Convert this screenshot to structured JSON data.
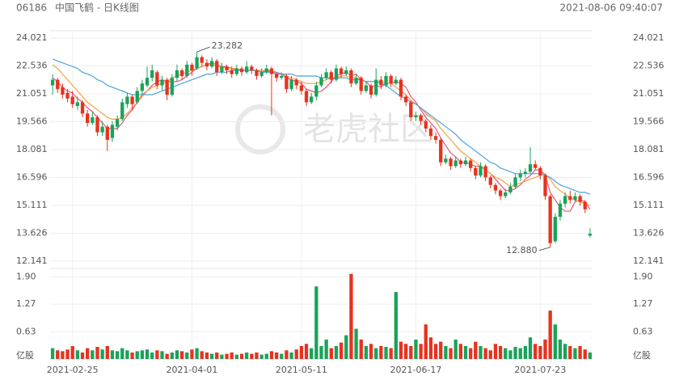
{
  "header": {
    "code": "06186",
    "title": "中国飞鹤 - 日K线图",
    "time": "2021-08-06 09:40:07"
  },
  "watermark": "老虎社区",
  "chart_data": {
    "type": "candlestick",
    "categories": [
      null,
      null,
      null,
      null,
      "2021-02-25",
      null,
      null,
      null,
      null,
      null,
      null,
      null,
      null,
      null,
      null,
      null,
      null,
      null,
      null,
      null,
      null,
      null,
      null,
      null,
      null,
      null,
      null,
      null,
      "2021-04-01",
      null,
      null,
      null,
      null,
      null,
      null,
      null,
      null,
      null,
      null,
      null,
      null,
      null,
      null,
      null,
      null,
      null,
      null,
      null,
      null,
      null,
      "2021-05-11",
      null,
      null,
      null,
      null,
      null,
      null,
      null,
      null,
      null,
      null,
      null,
      null,
      null,
      null,
      null,
      null,
      null,
      null,
      null,
      null,
      null,
      null,
      "2021-06-17",
      null,
      null,
      null,
      null,
      null,
      null,
      null,
      null,
      null,
      null,
      null,
      null,
      null,
      null,
      null,
      null,
      null,
      null,
      null,
      null,
      null,
      null,
      null,
      null,
      "2021-07-23",
      null,
      null,
      null,
      null,
      null,
      null,
      null,
      null,
      null,
      null
    ],
    "candles": [
      [
        21.5,
        22.1,
        21.0,
        21.8
      ],
      [
        21.8,
        21.9,
        21.1,
        21.3
      ],
      [
        21.4,
        21.6,
        20.8,
        21.0
      ],
      [
        21.1,
        21.3,
        20.6,
        20.8
      ],
      [
        20.9,
        21.2,
        20.3,
        20.5
      ],
      [
        20.4,
        20.9,
        20.2,
        20.6
      ],
      [
        20.6,
        20.7,
        19.8,
        20.0
      ],
      [
        20.0,
        20.2,
        19.3,
        19.5
      ],
      [
        19.5,
        20.1,
        19.4,
        19.8
      ],
      [
        19.8,
        19.9,
        18.8,
        19.0
      ],
      [
        19.0,
        19.6,
        18.8,
        19.3
      ],
      [
        19.3,
        19.4,
        18.0,
        18.6
      ],
      [
        18.7,
        19.6,
        18.5,
        19.4
      ],
      [
        19.3,
        19.9,
        19.1,
        19.7
      ],
      [
        19.7,
        20.8,
        19.6,
        20.6
      ],
      [
        20.5,
        21.1,
        20.3,
        20.9
      ],
      [
        20.9,
        21.0,
        20.2,
        20.5
      ],
      [
        20.6,
        21.4,
        20.5,
        21.2
      ],
      [
        21.2,
        21.8,
        21.0,
        21.6
      ],
      [
        21.5,
        22.5,
        21.4,
        21.9
      ],
      [
        21.9,
        22.6,
        21.7,
        22.3
      ],
      [
        22.2,
        22.3,
        21.3,
        21.5
      ],
      [
        21.5,
        22.0,
        21.2,
        21.8
      ],
      [
        21.8,
        21.9,
        20.7,
        21.0
      ],
      [
        21.0,
        22.1,
        20.9,
        21.9
      ],
      [
        21.9,
        22.6,
        21.7,
        22.3
      ],
      [
        22.3,
        22.4,
        21.8,
        22.0
      ],
      [
        22.0,
        22.8,
        21.9,
        22.6
      ],
      [
        22.6,
        22.7,
        22.0,
        22.3
      ],
      [
        22.4,
        23.282,
        22.3,
        23.0
      ],
      [
        23.0,
        23.1,
        22.5,
        22.7
      ],
      [
        22.7,
        22.9,
        22.3,
        22.5
      ],
      [
        22.5,
        23.0,
        22.4,
        22.8
      ],
      [
        22.8,
        22.9,
        22.0,
        22.2
      ],
      [
        22.2,
        22.7,
        22.1,
        22.5
      ],
      [
        22.5,
        22.6,
        22.1,
        22.3
      ],
      [
        22.3,
        22.5,
        21.9,
        22.1
      ],
      [
        22.1,
        22.6,
        22.0,
        22.4
      ],
      [
        22.4,
        22.5,
        22.0,
        22.2
      ],
      [
        22.2,
        22.8,
        22.1,
        22.5
      ],
      [
        22.5,
        22.6,
        22.1,
        22.3
      ],
      [
        22.3,
        22.4,
        21.8,
        22.0
      ],
      [
        22.0,
        22.4,
        21.9,
        22.2
      ],
      [
        22.2,
        22.6,
        22.1,
        22.4
      ],
      [
        22.4,
        22.5,
        19.9,
        22.1
      ],
      [
        22.1,
        22.2,
        21.7,
        21.9
      ],
      [
        21.9,
        22.2,
        21.8,
        22.0
      ],
      [
        22.0,
        22.1,
        21.1,
        21.3
      ],
      [
        21.3,
        22.0,
        21.2,
        21.8
      ],
      [
        21.8,
        21.9,
        21.3,
        21.5
      ],
      [
        21.5,
        21.7,
        21.0,
        21.2
      ],
      [
        21.2,
        21.3,
        20.4,
        20.6
      ],
      [
        20.6,
        21.1,
        20.5,
        20.9
      ],
      [
        20.9,
        21.7,
        20.7,
        21.5
      ],
      [
        21.5,
        22.1,
        21.4,
        21.9
      ],
      [
        21.9,
        22.4,
        21.8,
        22.2
      ],
      [
        22.2,
        22.3,
        21.6,
        21.8
      ],
      [
        21.8,
        22.6,
        21.7,
        22.4
      ],
      [
        22.4,
        22.5,
        21.9,
        22.1
      ],
      [
        22.1,
        22.5,
        22.0,
        22.3
      ],
      [
        22.3,
        22.4,
        21.4,
        21.6
      ],
      [
        21.6,
        22.1,
        21.5,
        21.9
      ],
      [
        21.9,
        22.0,
        21.0,
        21.2
      ],
      [
        21.2,
        21.7,
        21.1,
        21.5
      ],
      [
        21.5,
        21.6,
        20.8,
        21.0
      ],
      [
        21.0,
        22.4,
        20.9,
        21.8
      ],
      [
        21.8,
        22.0,
        21.3,
        21.5
      ],
      [
        21.5,
        22.2,
        21.4,
        22.0
      ],
      [
        22.0,
        22.1,
        21.4,
        21.6
      ],
      [
        21.6,
        22.0,
        21.5,
        21.8
      ],
      [
        21.8,
        21.9,
        20.7,
        20.9
      ],
      [
        20.9,
        21.0,
        20.4,
        20.6
      ],
      [
        20.6,
        20.7,
        19.6,
        19.8
      ],
      [
        19.8,
        20.1,
        19.6,
        19.9
      ],
      [
        19.9,
        20.0,
        19.4,
        19.6
      ],
      [
        19.6,
        19.7,
        19.0,
        19.2
      ],
      [
        19.2,
        19.4,
        18.6,
        18.8
      ],
      [
        18.8,
        19.0,
        18.4,
        18.6
      ],
      [
        18.6,
        18.7,
        17.2,
        17.4
      ],
      [
        17.4,
        17.8,
        17.3,
        17.6
      ],
      [
        17.6,
        17.7,
        17.0,
        17.2
      ],
      [
        17.2,
        17.7,
        17.1,
        17.5
      ],
      [
        17.5,
        17.6,
        17.1,
        17.3
      ],
      [
        17.3,
        17.7,
        17.2,
        17.5
      ],
      [
        17.5,
        17.6,
        16.9,
        17.1
      ],
      [
        17.1,
        17.2,
        16.5,
        16.7
      ],
      [
        16.7,
        17.4,
        16.6,
        17.2
      ],
      [
        17.2,
        17.3,
        16.4,
        16.6
      ],
      [
        16.6,
        16.7,
        16.0,
        16.2
      ],
      [
        16.2,
        16.3,
        15.7,
        15.9
      ],
      [
        15.9,
        16.0,
        15.4,
        15.6
      ],
      [
        15.6,
        16.0,
        15.5,
        15.8
      ],
      [
        15.8,
        16.3,
        15.7,
        16.1
      ],
      [
        16.1,
        16.8,
        16.0,
        16.6
      ],
      [
        16.6,
        17.0,
        16.4,
        16.8
      ],
      [
        16.8,
        17.1,
        16.6,
        16.9
      ],
      [
        16.9,
        18.2,
        16.8,
        17.3
      ],
      [
        17.3,
        17.5,
        17.0,
        17.1
      ],
      [
        17.1,
        17.2,
        16.5,
        16.7
      ],
      [
        16.7,
        16.8,
        15.4,
        15.6
      ],
      [
        15.6,
        15.7,
        12.88,
        13.1
      ],
      [
        13.2,
        14.7,
        13.1,
        14.5
      ],
      [
        14.5,
        15.4,
        14.3,
        15.2
      ],
      [
        15.2,
        15.8,
        15.0,
        15.6
      ],
      [
        15.6,
        15.9,
        15.2,
        15.4
      ],
      [
        15.4,
        15.8,
        15.3,
        15.6
      ],
      [
        15.6,
        15.7,
        15.1,
        15.3
      ],
      [
        15.3,
        15.4,
        14.7,
        14.9
      ],
      [
        13.5,
        13.9,
        13.4,
        13.6
      ]
    ],
    "up_color": "#1aa35a",
    "down_color": "#e8321e",
    "series": [
      {
        "color": "#e8567c",
        "values": [
          21.9,
          21.7,
          21.4,
          21.2,
          21.1,
          20.8,
          20.6,
          20.3,
          20.1,
          19.8,
          19.5,
          19.2,
          19.2,
          19.2,
          19.5,
          19.9,
          20.2,
          20.6,
          21.0,
          21.2,
          21.5,
          21.7,
          21.8,
          21.7,
          21.7,
          21.7,
          21.8,
          22.0,
          22.2,
          22.4,
          22.5,
          22.6,
          22.7,
          22.6,
          22.5,
          22.5,
          22.4,
          22.3,
          22.3,
          22.3,
          22.3,
          22.3,
          22.2,
          22.3,
          22.2,
          22.1,
          22.1,
          21.9,
          21.8,
          21.7,
          21.6,
          21.3,
          21.2,
          21.1,
          21.2,
          21.4,
          21.7,
          22.0,
          22.1,
          22.2,
          22.0,
          22.1,
          21.8,
          21.7,
          21.4,
          21.5,
          21.4,
          21.6,
          21.6,
          21.7,
          21.6,
          21.4,
          20.9,
          20.6,
          20.2,
          19.8,
          19.5,
          19.2,
          18.7,
          18.3,
          17.9,
          17.7,
          17.4,
          17.4,
          17.3,
          17.2,
          17.2,
          17.0,
          16.8,
          16.5,
          16.2,
          15.9,
          15.9,
          16.0,
          16.2,
          16.5,
          16.7,
          17.0,
          17.0,
          16.7,
          15.8,
          15.4,
          15.0,
          14.8,
          14.8,
          15.3,
          15.4,
          15.3,
          14.9
        ]
      },
      {
        "color": "#f5a041",
        "values": [
          22.6,
          22.4,
          22.1,
          21.8,
          21.5,
          21.2,
          20.9,
          20.6,
          20.4,
          20.2,
          20.0,
          19.8,
          19.7,
          19.7,
          19.8,
          20.0,
          20.3,
          20.6,
          20.9,
          21.2,
          21.4,
          21.5,
          21.6,
          21.7,
          21.9,
          22.0,
          22.1,
          22.2,
          22.3,
          22.4,
          22.5,
          22.6,
          22.6,
          22.5,
          22.5,
          22.4,
          22.4,
          22.4,
          22.3,
          22.3,
          22.3,
          22.3,
          22.3,
          22.3,
          22.3,
          22.2,
          22.1,
          22.0,
          21.9,
          21.8,
          21.7,
          21.6,
          21.6,
          21.6,
          21.7,
          21.8,
          21.9,
          21.9,
          22.0,
          22.0,
          21.9,
          21.9,
          21.8,
          21.7,
          21.7,
          21.7,
          21.7,
          21.6,
          21.6,
          21.4,
          21.2,
          21.0,
          20.7,
          20.5,
          20.3,
          20.0,
          19.8,
          19.6,
          19.2,
          18.9,
          18.6,
          18.3,
          18.0,
          17.8,
          17.6,
          17.4,
          17.2,
          17.0,
          16.8,
          16.6,
          16.5,
          16.3,
          16.1,
          16.2,
          16.3,
          16.4,
          16.5,
          16.6,
          16.7,
          16.8,
          16.5,
          16.1,
          15.9,
          15.7,
          15.5,
          15.4,
          15.3,
          15.2,
          15.1
        ]
      },
      {
        "color": "#4aa3df",
        "values": [
          22.9,
          22.8,
          22.7,
          22.6,
          22.5,
          22.4,
          22.2,
          22.1,
          22.0,
          21.8,
          21.7,
          21.5,
          21.4,
          21.3,
          21.2,
          21.1,
          21.0,
          21.0,
          21.0,
          21.0,
          21.0,
          21.1,
          21.2,
          21.3,
          21.4,
          21.5,
          21.6,
          21.7,
          21.8,
          21.9,
          22.0,
          22.1,
          22.1,
          22.2,
          22.2,
          22.2,
          22.3,
          22.3,
          22.3,
          22.3,
          22.3,
          22.3,
          22.2,
          22.2,
          22.2,
          22.2,
          22.1,
          22.1,
          22.1,
          22.0,
          22.0,
          22.0,
          22.0,
          22.0,
          21.9,
          21.9,
          21.9,
          21.9,
          21.9,
          21.9,
          21.8,
          21.8,
          21.8,
          21.7,
          21.7,
          21.7,
          21.6,
          21.5,
          21.3,
          21.1,
          20.9,
          20.8,
          20.6,
          20.5,
          20.3,
          20.1,
          19.9,
          19.7,
          19.5,
          19.3,
          19.1,
          18.9,
          18.6,
          18.4,
          18.2,
          18.0,
          17.8,
          17.6,
          17.4,
          17.3,
          17.1,
          17.0,
          16.9,
          16.8,
          16.8,
          16.8,
          16.8,
          16.8,
          16.8,
          16.7,
          16.6,
          16.4,
          16.2,
          16.1,
          16.0,
          15.9,
          15.8,
          15.8,
          15.7
        ]
      }
    ],
    "ylim": [
      12.141,
      24.021
    ],
    "yticks": [
      24.021,
      22.536,
      21.051,
      19.566,
      18.081,
      16.596,
      15.111,
      13.626,
      12.141
    ],
    "annotations": [
      "23.282",
      "12.880"
    ],
    "volume": [
      0.25,
      0.2,
      0.18,
      0.22,
      0.3,
      0.2,
      0.15,
      0.25,
      0.2,
      0.28,
      0.22,
      0.3,
      0.2,
      0.18,
      0.25,
      0.2,
      0.15,
      0.18,
      0.2,
      0.22,
      0.15,
      0.2,
      0.18,
      0.12,
      0.15,
      0.2,
      0.18,
      0.15,
      0.22,
      0.25,
      0.18,
      0.15,
      0.12,
      0.15,
      0.1,
      0.12,
      0.15,
      0.1,
      0.12,
      0.15,
      0.12,
      0.15,
      0.1,
      0.12,
      0.18,
      0.15,
      0.12,
      0.2,
      0.15,
      0.22,
      0.3,
      0.35,
      0.25,
      1.68,
      0.3,
      0.45,
      0.25,
      0.3,
      0.38,
      0.55,
      1.97,
      0.7,
      0.45,
      0.3,
      0.35,
      0.25,
      0.3,
      0.28,
      0.25,
      1.55,
      0.4,
      0.35,
      0.3,
      0.45,
      0.35,
      0.8,
      0.5,
      0.35,
      0.4,
      0.3,
      0.25,
      0.45,
      0.35,
      0.3,
      0.25,
      0.4,
      0.3,
      0.25,
      0.2,
      0.35,
      0.3,
      0.25,
      0.2,
      0.28,
      0.25,
      0.3,
      0.5,
      0.35,
      0.3,
      0.45,
      1.12,
      0.8,
      0.45,
      0.35,
      0.3,
      0.25,
      0.3,
      0.22,
      0.15
    ],
    "vlim": [
      0,
      2.04
    ],
    "vticks": [
      0.63,
      1.27,
      {
        "value": 1.9,
        "label": "1.90"
      }
    ],
    "volume_unit": "亿股"
  }
}
